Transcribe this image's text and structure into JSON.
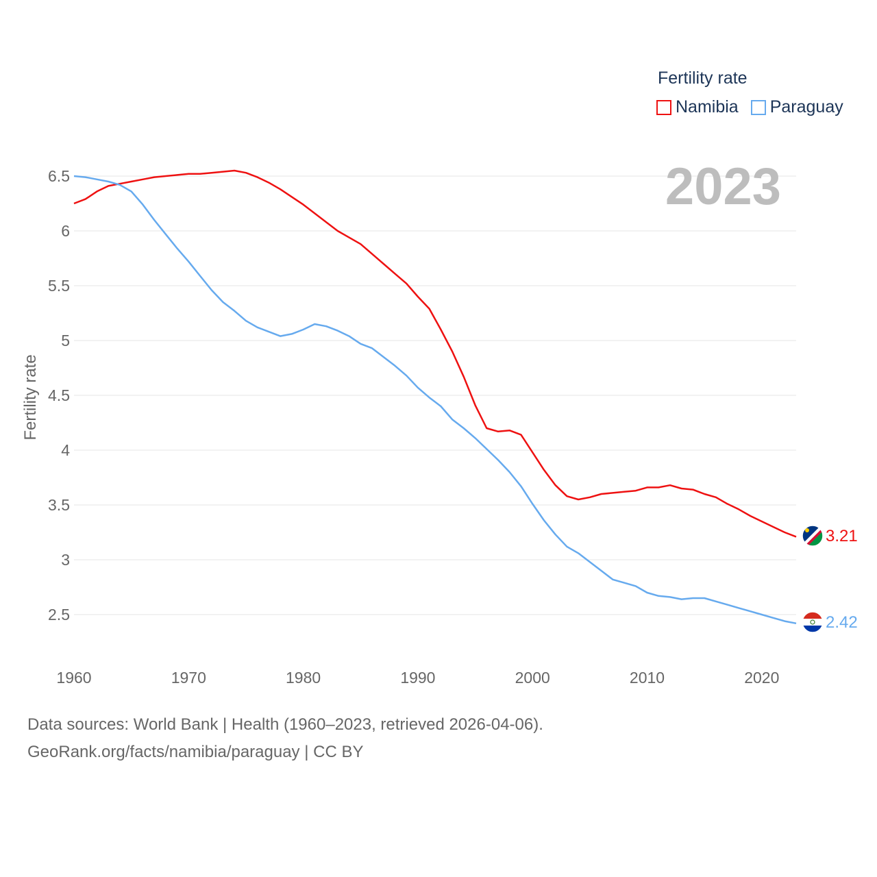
{
  "legend": {
    "title": "Fertility rate",
    "items": [
      {
        "label": "Namibia",
        "color": "#ee1111"
      },
      {
        "label": "Paraguay",
        "color": "#66aaee"
      }
    ]
  },
  "footer": {
    "line1": "Data sources: World Bank | Health (1960–2023, retrieved 2026-04-06).",
    "line2": "GeoRank.org/facts/namibia/paraguay | CC BY"
  },
  "chart_data": {
    "type": "line",
    "year_label": "2023",
    "ylabel": "Fertility rate",
    "xlim": [
      1960,
      2023
    ],
    "ylim": [
      2.1,
      6.6
    ],
    "x_ticks": [
      1960,
      1970,
      1980,
      1990,
      2000,
      2010,
      2020
    ],
    "y_ticks": [
      2.5,
      3,
      3.5,
      4,
      4.5,
      5,
      5.5,
      6,
      6.5
    ],
    "y_tick_labels": [
      "2.5",
      "3",
      "3.5",
      "4",
      "4.5",
      "5",
      "5.5",
      "6",
      "6.5"
    ],
    "series": [
      {
        "name": "Namibia",
        "color": "#ee1111",
        "end_label": "3.21",
        "x": [
          1960,
          1961,
          1962,
          1963,
          1964,
          1965,
          1966,
          1967,
          1968,
          1969,
          1970,
          1971,
          1972,
          1973,
          1974,
          1975,
          1976,
          1977,
          1978,
          1979,
          1980,
          1981,
          1982,
          1983,
          1984,
          1985,
          1986,
          1987,
          1988,
          1989,
          1990,
          1991,
          1992,
          1993,
          1994,
          1995,
          1996,
          1997,
          1998,
          1999,
          2000,
          2001,
          2002,
          2003,
          2004,
          2005,
          2006,
          2007,
          2008,
          2009,
          2010,
          2011,
          2012,
          2013,
          2014,
          2015,
          2016,
          2017,
          2018,
          2019,
          2020,
          2021,
          2022,
          2023
        ],
        "values": [
          6.25,
          6.29,
          6.36,
          6.41,
          6.43,
          6.45,
          6.47,
          6.49,
          6.5,
          6.51,
          6.52,
          6.52,
          6.53,
          6.54,
          6.55,
          6.53,
          6.49,
          6.44,
          6.38,
          6.31,
          6.24,
          6.16,
          6.08,
          6.0,
          5.94,
          5.88,
          5.79,
          5.7,
          5.61,
          5.52,
          5.4,
          5.29,
          5.1,
          4.9,
          4.67,
          4.41,
          4.2,
          4.17,
          4.18,
          4.14,
          3.98,
          3.82,
          3.68,
          3.58,
          3.55,
          3.57,
          3.6,
          3.61,
          3.62,
          3.63,
          3.66,
          3.66,
          3.68,
          3.65,
          3.64,
          3.6,
          3.57,
          3.51,
          3.46,
          3.4,
          3.35,
          3.3,
          3.25,
          3.21
        ]
      },
      {
        "name": "Paraguay",
        "color": "#66aaee",
        "end_label": "2.42",
        "x": [
          1960,
          1961,
          1962,
          1963,
          1964,
          1965,
          1966,
          1967,
          1968,
          1969,
          1970,
          1971,
          1972,
          1973,
          1974,
          1975,
          1976,
          1977,
          1978,
          1979,
          1980,
          1981,
          1982,
          1983,
          1984,
          1985,
          1986,
          1987,
          1988,
          1989,
          1990,
          1991,
          1992,
          1993,
          1994,
          1995,
          1996,
          1997,
          1998,
          1999,
          2000,
          2001,
          2002,
          2003,
          2004,
          2005,
          2006,
          2007,
          2008,
          2009,
          2010,
          2011,
          2012,
          2013,
          2014,
          2015,
          2016,
          2017,
          2018,
          2019,
          2020,
          2021,
          2022,
          2023
        ],
        "values": [
          6.5,
          6.49,
          6.47,
          6.45,
          6.42,
          6.36,
          6.24,
          6.1,
          5.97,
          5.84,
          5.72,
          5.59,
          5.46,
          5.35,
          5.27,
          5.18,
          5.12,
          5.08,
          5.04,
          5.06,
          5.1,
          5.15,
          5.13,
          5.09,
          5.04,
          4.97,
          4.93,
          4.85,
          4.77,
          4.68,
          4.57,
          4.48,
          4.4,
          4.28,
          4.2,
          4.11,
          4.01,
          3.91,
          3.8,
          3.67,
          3.51,
          3.36,
          3.23,
          3.12,
          3.06,
          2.98,
          2.9,
          2.82,
          2.79,
          2.76,
          2.7,
          2.67,
          2.66,
          2.64,
          2.65,
          2.65,
          2.62,
          2.59,
          2.56,
          2.53,
          2.5,
          2.47,
          2.44,
          2.42
        ]
      }
    ]
  }
}
